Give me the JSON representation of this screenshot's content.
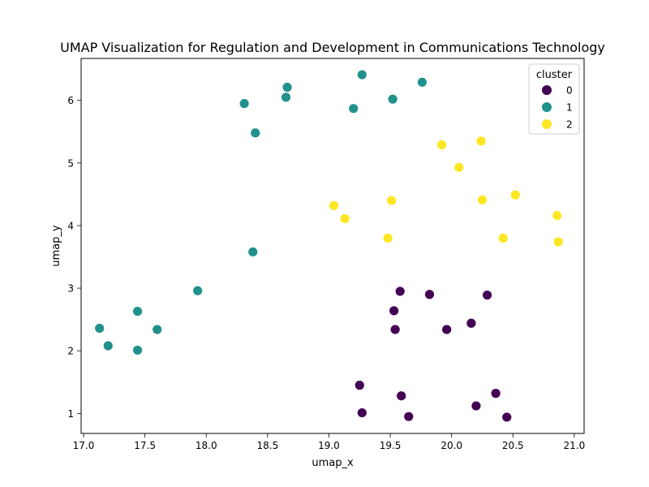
{
  "chart_data": {
    "type": "scatter",
    "title": "UMAP Visualization for Regulation and Development in Communications Technology",
    "xlabel": "umap_x",
    "ylabel": "umap_y",
    "xlim": [
      16.98,
      21.08
    ],
    "ylim": [
      0.68,
      6.67
    ],
    "xticks": [
      17.0,
      17.5,
      18.0,
      18.5,
      19.0,
      19.5,
      20.0,
      20.5,
      21.0
    ],
    "xtick_labels": [
      "17.0",
      "17.5",
      "18.0",
      "18.5",
      "19.0",
      "19.5",
      "20.0",
      "20.5",
      "21.0"
    ],
    "yticks": [
      1,
      2,
      3,
      4,
      5,
      6
    ],
    "ytick_labels": [
      "1",
      "2",
      "3",
      "4",
      "5",
      "6"
    ],
    "grid": false,
    "legend": {
      "title": "cluster",
      "placement": "top-right"
    },
    "series": [
      {
        "name": "0",
        "color": "#440154",
        "points": [
          [
            19.58,
            2.95
          ],
          [
            19.82,
            2.9
          ],
          [
            20.29,
            2.89
          ],
          [
            19.53,
            2.64
          ],
          [
            19.54,
            2.34
          ],
          [
            19.96,
            2.34
          ],
          [
            20.16,
            2.44
          ],
          [
            19.25,
            1.45
          ],
          [
            19.27,
            1.01
          ],
          [
            19.59,
            1.28
          ],
          [
            19.65,
            0.95
          ],
          [
            20.2,
            1.12
          ],
          [
            20.36,
            1.32
          ],
          [
            20.45,
            0.94
          ]
        ]
      },
      {
        "name": "1",
        "color": "#21918c",
        "points": [
          [
            19.27,
            6.41
          ],
          [
            18.66,
            6.21
          ],
          [
            18.65,
            6.05
          ],
          [
            18.31,
            5.95
          ],
          [
            19.2,
            5.87
          ],
          [
            19.52,
            6.02
          ],
          [
            19.76,
            6.29
          ],
          [
            18.4,
            5.48
          ],
          [
            18.38,
            3.58
          ],
          [
            17.93,
            2.96
          ],
          [
            17.44,
            2.63
          ],
          [
            17.6,
            2.34
          ],
          [
            17.13,
            2.36
          ],
          [
            17.2,
            2.08
          ],
          [
            17.44,
            2.01
          ]
        ]
      },
      {
        "name": "2",
        "color": "#fde725",
        "points": [
          [
            20.24,
            5.35
          ],
          [
            19.92,
            5.29
          ],
          [
            20.06,
            4.93
          ],
          [
            20.52,
            4.49
          ],
          [
            20.25,
            4.41
          ],
          [
            19.51,
            4.4
          ],
          [
            19.04,
            4.32
          ],
          [
            19.13,
            4.11
          ],
          [
            20.86,
            4.16
          ],
          [
            19.48,
            3.8
          ],
          [
            20.42,
            3.8
          ],
          [
            20.87,
            3.74
          ]
        ]
      }
    ]
  }
}
